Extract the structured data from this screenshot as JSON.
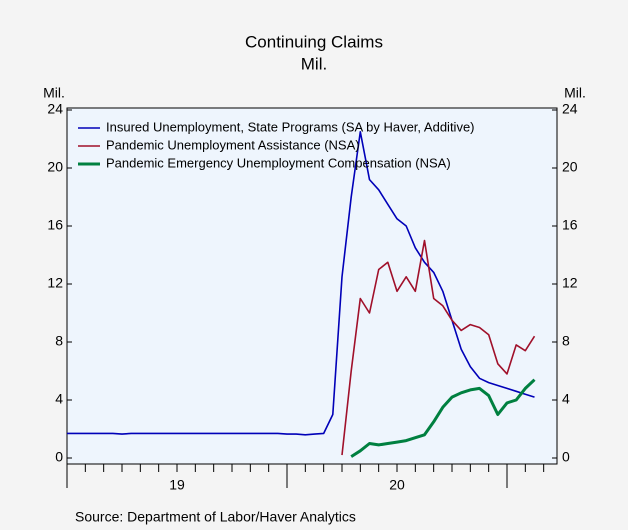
{
  "chart_data": {
    "type": "line",
    "title": "Continuing Claims",
    "subtitle": "Mil.",
    "y_label": "Mil.",
    "y2_label": "Mil.",
    "source": "Source: Department of Labor/Haver Analytics",
    "categories": [
      null,
      null,
      null,
      null,
      null,
      null,
      null,
      null,
      null,
      null,
      null,
      null,
      "19",
      null,
      null,
      null,
      null,
      null,
      null,
      null,
      null,
      null,
      null,
      null,
      null,
      null,
      null,
      null,
      null,
      null,
      null,
      null,
      null,
      null,
      null,
      null,
      "20",
      null,
      null,
      null,
      null,
      null,
      null,
      null,
      null,
      null,
      null,
      null,
      null,
      null,
      null,
      null
    ],
    "series": [
      {
        "name": "Insured Unemployment, State Programs (SA by Haver, Additive)",
        "color": "#0000b8",
        "values": [
          1.7,
          1.7,
          1.7,
          1.7,
          1.7,
          1.7,
          1.65,
          1.7,
          1.7,
          1.7,
          1.7,
          1.7,
          1.7,
          1.7,
          1.7,
          1.7,
          1.7,
          1.7,
          1.7,
          1.7,
          1.7,
          1.7,
          1.7,
          1.7,
          1.65,
          1.65,
          1.6,
          1.65,
          1.7,
          3.0,
          12.5,
          18,
          22.5,
          19.2,
          18.5,
          17.5,
          16.5,
          16,
          14.5,
          13.5,
          12.8,
          11.5,
          9.5,
          7.5,
          6.3,
          5.5,
          5.2,
          5.0,
          4.8,
          4.6,
          4.4,
          4.2
        ]
      },
      {
        "name": "Pandemic Unemployment Assistance (NSA)",
        "color": "#a0102a",
        "values": [
          null,
          null,
          null,
          null,
          null,
          null,
          null,
          null,
          null,
          null,
          null,
          null,
          null,
          null,
          null,
          null,
          null,
          null,
          null,
          null,
          null,
          null,
          null,
          null,
          null,
          null,
          null,
          null,
          null,
          null,
          0.2,
          6,
          11,
          10,
          13,
          13.5,
          11.5,
          12.5,
          11.5,
          15,
          11,
          10.5,
          9.5,
          8.8,
          9.2,
          9,
          8.5,
          6.5,
          5.8,
          7.8,
          7.4,
          8.4
        ]
      },
      {
        "name": "Pandemic Emergency Unemployment Compensation (NSA)",
        "color": "#008040",
        "values": [
          null,
          null,
          null,
          null,
          null,
          null,
          null,
          null,
          null,
          null,
          null,
          null,
          null,
          null,
          null,
          null,
          null,
          null,
          null,
          null,
          null,
          null,
          null,
          null,
          null,
          null,
          null,
          null,
          null,
          null,
          null,
          0.1,
          0.5,
          1.0,
          0.9,
          1.0,
          1.1,
          1.2,
          1.4,
          1.6,
          2.5,
          3.5,
          4.2,
          4.5,
          4.7,
          4.8,
          4.3,
          3.0,
          3.8,
          4.0,
          4.8,
          5.4
        ]
      }
    ],
    "ylim": [
      0,
      24
    ],
    "yticks": [
      0,
      4,
      8,
      12,
      16,
      20,
      24
    ],
    "y2lim": [
      0,
      24
    ],
    "y2ticks": [
      0,
      4,
      8,
      12,
      16,
      20,
      24
    ],
    "legend": "upper left"
  }
}
